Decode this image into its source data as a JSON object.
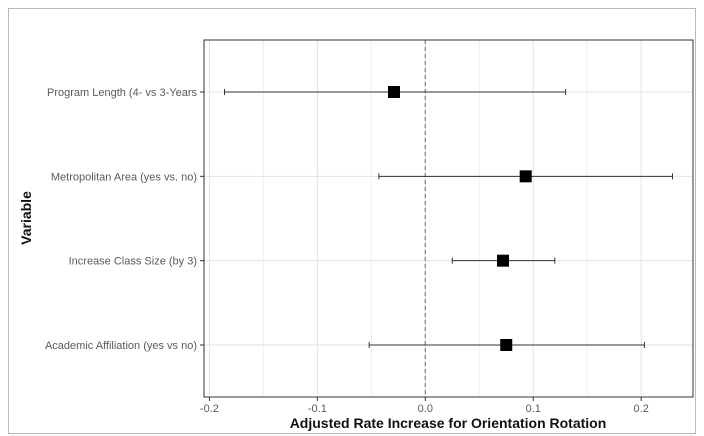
{
  "chart_data": {
    "type": "scatter",
    "xlabel": "Adjusted Rate Increase for Orientation Rotation",
    "ylabel": "Variable",
    "xlim": [
      -0.205,
      0.248
    ],
    "x_ticks": [
      -0.2,
      -0.1,
      0.0,
      0.1,
      0.2
    ],
    "x_tick_labels": [
      "-0.2",
      "-0.1",
      "0.0",
      "0.1",
      "0.2"
    ],
    "reference_line_x": 0,
    "grid": true,
    "points": [
      {
        "label": "Program Length (4- vs 3-Years",
        "estimate": -0.029,
        "lower": -0.186,
        "upper": 0.13
      },
      {
        "label": "Metropolitan Area (yes vs. no)",
        "estimate": 0.093,
        "lower": -0.043,
        "upper": 0.229
      },
      {
        "label": "Increase Class Size (by 3)",
        "estimate": 0.072,
        "lower": 0.025,
        "upper": 0.12
      },
      {
        "label": "Academic Affiliation (yes vs no)",
        "estimate": 0.075,
        "lower": -0.052,
        "upper": 0.203
      }
    ]
  }
}
